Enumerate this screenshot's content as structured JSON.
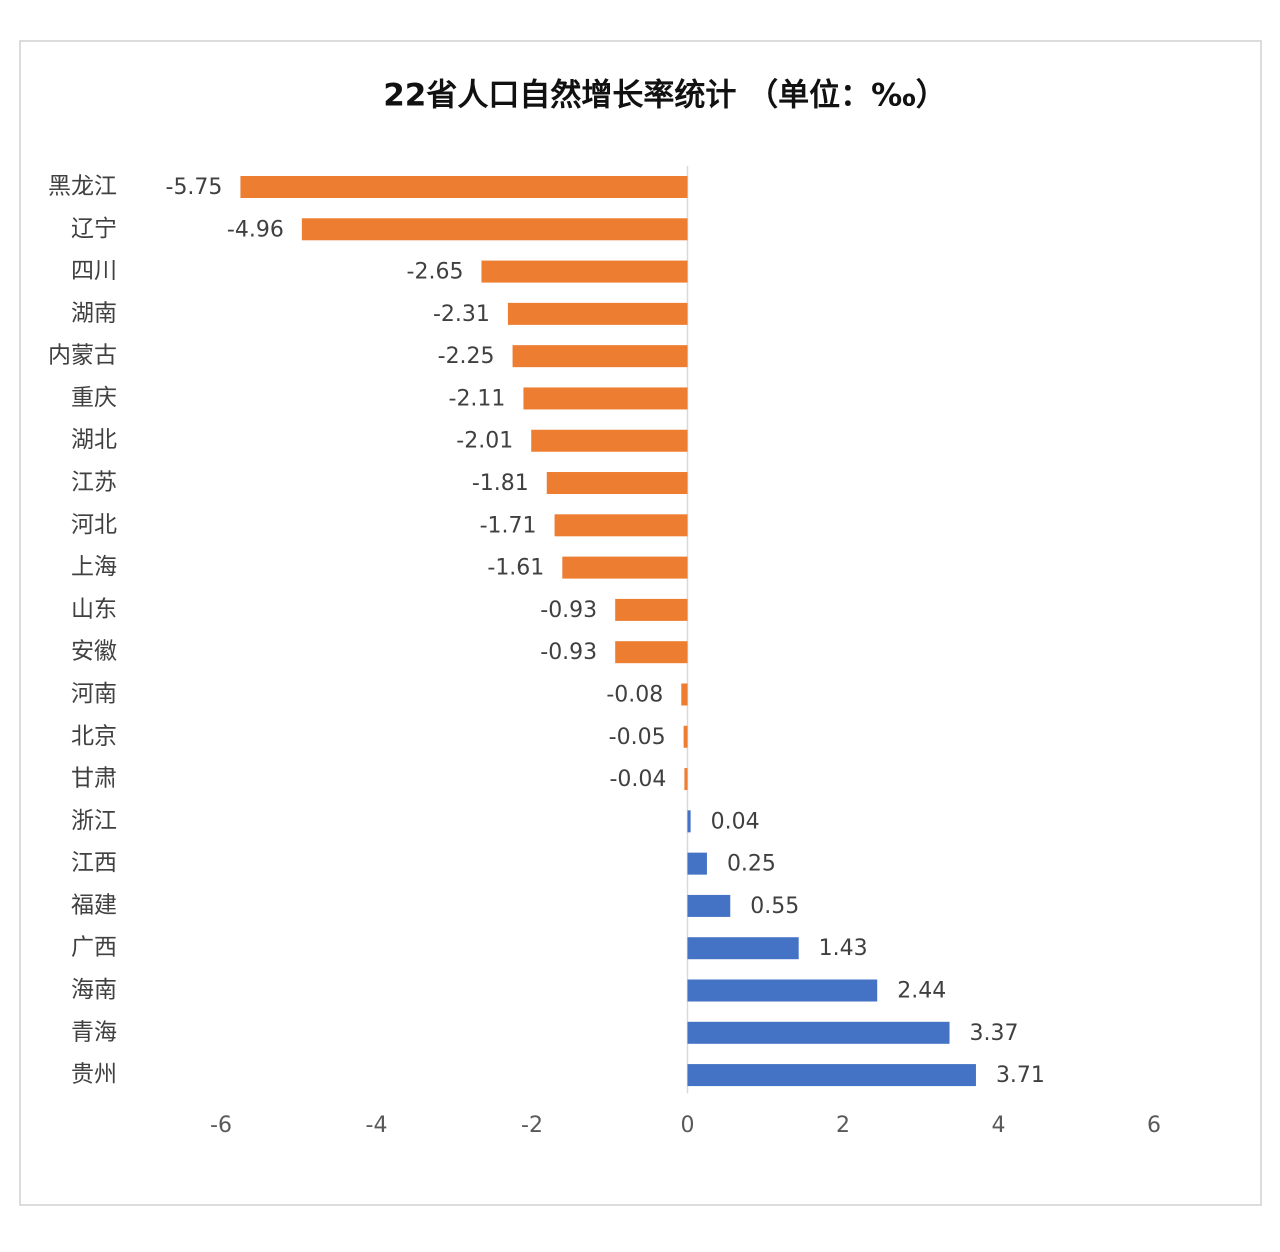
{
  "chart_data": {
    "type": "barh",
    "title": "22省人口自然增长率统计 （单位：‰）",
    "categories": [
      "黑龙江",
      "辽宁",
      "四川",
      "湖南",
      "内蒙古",
      "重庆",
      "湖北",
      "江苏",
      "河北",
      "上海",
      "山东",
      "安徽",
      "河南",
      "北京",
      "甘肃",
      "浙江",
      "江西",
      "福建",
      "广西",
      "海南",
      "青海",
      "贵州"
    ],
    "values": [
      -5.75,
      -4.96,
      -2.65,
      -2.31,
      -2.25,
      -2.11,
      -2.01,
      -1.81,
      -1.71,
      -1.61,
      -0.93,
      -0.93,
      -0.08,
      -0.05,
      -0.04,
      0.04,
      0.25,
      0.55,
      1.43,
      2.44,
      3.37,
      3.71
    ],
    "color_negative": "#ed7d31",
    "color_positive": "#4472c4",
    "xlim": [
      -6,
      6
    ],
    "xticks": [
      -6,
      -4,
      -2,
      0,
      2,
      4,
      6
    ],
    "grid": false
  }
}
